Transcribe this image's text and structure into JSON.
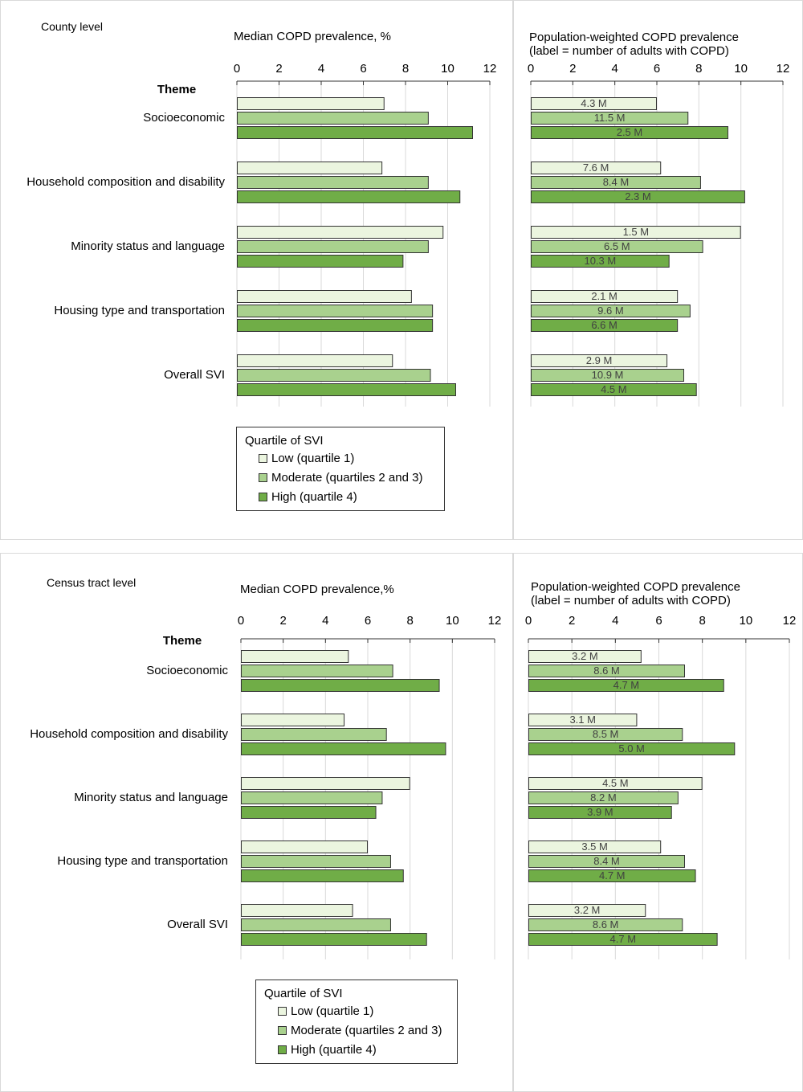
{
  "legend": {
    "title": "Quartile of SVI",
    "items": [
      {
        "label": "Low (quartile 1)",
        "color": "#ebf5df"
      },
      {
        "label": "Moderate (quartiles 2 and 3)",
        "color": "#a9d18e"
      },
      {
        "label": "High (quartile 4)",
        "color": "#70ad47"
      }
    ]
  },
  "county": {
    "level_label": "County level",
    "median_title": "Median COPD prevalence, %",
    "pw_title_line1": "Population-weighted COPD prevalence",
    "pw_title_line2": "(label = number of adults with COPD)"
  },
  "tract": {
    "level_label": "Census tract level",
    "median_title": "Median COPD prevalence,%",
    "pw_title_line1": "Population-weighted COPD prevalence",
    "pw_title_line2": "(label = number of adults with COPD)"
  },
  "chart_data": [
    {
      "id": "county-median",
      "type": "bar",
      "orientation": "horizontal",
      "title": "Median COPD prevalence, %",
      "category_header": "Theme",
      "xlim": [
        0,
        12
      ],
      "ticks": [
        0,
        2,
        4,
        6,
        8,
        10,
        12
      ],
      "categories": [
        "Socioeconomic",
        "Household composition and disability",
        "Minority status and language",
        "Housing type and transportation",
        "Overall SVI"
      ],
      "series": [
        {
          "name": "Low (quartile 1)",
          "color": "#ebf5df",
          "values": [
            7.0,
            6.9,
            9.8,
            8.3,
            7.4
          ]
        },
        {
          "name": "Moderate (quartiles 2 and 3)",
          "color": "#a9d18e",
          "values": [
            9.1,
            9.1,
            9.1,
            9.3,
            9.2
          ]
        },
        {
          "name": "High (quartile 4)",
          "color": "#70ad47",
          "values": [
            11.2,
            10.6,
            7.9,
            9.3,
            10.4
          ]
        }
      ]
    },
    {
      "id": "county-pw",
      "type": "bar",
      "orientation": "horizontal",
      "title": "Population-weighted COPD prevalence (label = number of adults with COPD)",
      "xlim": [
        0,
        12
      ],
      "ticks": [
        0,
        2,
        4,
        6,
        8,
        10,
        12
      ],
      "categories": [
        "Socioeconomic",
        "Household composition and disability",
        "Minority status and language",
        "Housing type and transportation",
        "Overall SVI"
      ],
      "series": [
        {
          "name": "Low (quartile 1)",
          "color": "#ebf5df",
          "values": [
            6.0,
            6.2,
            10.0,
            7.0,
            6.5
          ],
          "labels": [
            "4.3 M",
            "7.6 M",
            "1.5 M",
            "2.1 M",
            "2.9 M"
          ]
        },
        {
          "name": "Moderate (quartiles 2 and 3)",
          "color": "#a9d18e",
          "values": [
            7.5,
            8.1,
            8.2,
            7.6,
            7.3
          ],
          "labels": [
            "11.5 M",
            "8.4 M",
            "6.5 M",
            "9.6 M",
            "10.9 M"
          ]
        },
        {
          "name": "High (quartile 4)",
          "color": "#70ad47",
          "values": [
            9.4,
            10.2,
            6.6,
            7.0,
            7.9
          ],
          "labels": [
            "2.5 M",
            "2.3 M",
            "10.3 M",
            "6.6 M",
            "4.5 M"
          ]
        }
      ]
    },
    {
      "id": "tract-median",
      "type": "bar",
      "orientation": "horizontal",
      "title": "Median COPD prevalence,%",
      "category_header": "Theme",
      "xlim": [
        0,
        12
      ],
      "ticks": [
        0,
        2,
        4,
        6,
        8,
        10,
        12
      ],
      "categories": [
        "Socioeconomic",
        "Household composition and disability",
        "Minority status and language",
        "Housing type and transportation",
        "Overall SVI"
      ],
      "series": [
        {
          "name": "Low (quartile 1)",
          "color": "#ebf5df",
          "values": [
            5.1,
            4.9,
            8.0,
            6.0,
            5.3
          ]
        },
        {
          "name": "Moderate (quartiles 2 and 3)",
          "color": "#a9d18e",
          "values": [
            7.2,
            6.9,
            6.7,
            7.1,
            7.1
          ]
        },
        {
          "name": "High (quartile 4)",
          "color": "#70ad47",
          "values": [
            9.4,
            9.7,
            6.4,
            7.7,
            8.8
          ]
        }
      ]
    },
    {
      "id": "tract-pw",
      "type": "bar",
      "orientation": "horizontal",
      "title": "Population-weighted COPD prevalence (label = number of adults with COPD)",
      "xlim": [
        0,
        12
      ],
      "ticks": [
        0,
        2,
        4,
        6,
        8,
        10,
        12
      ],
      "categories": [
        "Socioeconomic",
        "Household composition and disability",
        "Minority status and language",
        "Housing type and transportation",
        "Overall SVI"
      ],
      "series": [
        {
          "name": "Low (quartile 1)",
          "color": "#ebf5df",
          "values": [
            5.2,
            5.0,
            8.0,
            6.1,
            5.4
          ],
          "labels": [
            "3.2 M",
            "3.1 M",
            "4.5 M",
            "3.5 M",
            "3.2 M"
          ]
        },
        {
          "name": "Moderate (quartiles 2 and 3)",
          "color": "#a9d18e",
          "values": [
            7.2,
            7.1,
            6.9,
            7.2,
            7.1
          ],
          "labels": [
            "8.6 M",
            "8.5 M",
            "8.2 M",
            "8.4 M",
            "8.6 M"
          ]
        },
        {
          "name": "High (quartile 4)",
          "color": "#70ad47",
          "values": [
            9.0,
            9.5,
            6.6,
            7.7,
            8.7
          ],
          "labels": [
            "4.7 M",
            "5.0 M",
            "3.9 M",
            "4.7 M",
            "4.7 M"
          ]
        }
      ]
    }
  ]
}
